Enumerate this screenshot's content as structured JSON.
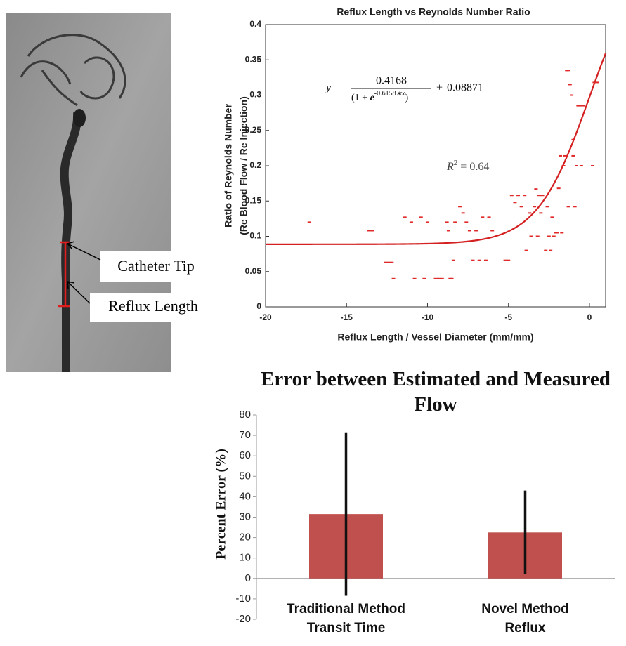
{
  "image_panel": {
    "labels": [
      "Catheter Tip",
      "Reflux Length"
    ]
  },
  "chart_data": [
    {
      "type": "scatter",
      "title": "Reflux Length vs Reynolds Number Ratio",
      "xlabel": "Reflux Length / Vessel Diameter (mm/mm)",
      "ylabel": [
        "Ratio of Reynolds Number",
        "(Re Blood Flow / Re Injection)"
      ],
      "color": "#e02a2a",
      "x": [
        -17.3,
        -13.6,
        -13.4,
        -12.6,
        -12.4,
        -12.2,
        -12.1,
        -11.4,
        -11,
        -10.8,
        -10.4,
        -10.2,
        -10,
        -9.5,
        -9.3,
        -9.1,
        -8.8,
        -8.7,
        -8.6,
        -8.5,
        -8.4,
        -8.3,
        -8,
        -7.8,
        -7.6,
        -7.4,
        -7.2,
        -7,
        -6.8,
        -6.6,
        -6.4,
        -6.2,
        -6,
        -5.2,
        -5,
        -4.8,
        -4.6,
        -4.4,
        -4.2,
        -4,
        -3.9,
        -3.7,
        -3.6,
        -3.4,
        -3.3,
        -3.2,
        -3.1,
        -3,
        -2.9,
        -2.7,
        -2.6,
        -2.5,
        -2.4,
        -2.3,
        -2.2,
        -2.1,
        -2,
        -1.9,
        -1.8,
        -1.7,
        -1.6,
        -1.5,
        -1.4,
        -1.3,
        -1.2,
        -1.1,
        -1,
        -0.9,
        -0.8,
        -0.7,
        -0.6,
        -0.5,
        -0.4,
        0.2,
        0.3,
        0.5,
        -1.3,
        -1
      ],
      "values": [
        0.12,
        0.108,
        0.108,
        0.063,
        0.063,
        0.063,
        0.04,
        0.127,
        0.12,
        0.04,
        0.127,
        0.04,
        0.12,
        0.04,
        0.04,
        0.04,
        0.12,
        0.108,
        0.04,
        0.04,
        0.066,
        0.12,
        0.142,
        0.133,
        0.12,
        0.108,
        0.066,
        0.108,
        0.066,
        0.127,
        0.066,
        0.127,
        0.108,
        0.066,
        0.066,
        0.158,
        0.148,
        0.158,
        0.142,
        0.158,
        0.08,
        0.133,
        0.1,
        0.142,
        0.167,
        0.1,
        0.158,
        0.133,
        0.158,
        0.08,
        0.142,
        0.1,
        0.08,
        0.127,
        0.1,
        0.105,
        0.105,
        0.168,
        0.214,
        0.105,
        0.2,
        0.214,
        0.335,
        0.335,
        0.315,
        0.3,
        0.237,
        0.142,
        0.2,
        0.285,
        0.285,
        0.2,
        0.285,
        0.2,
        0.318,
        0.318,
        0.142,
        0.214
      ],
      "xlim": [
        -20,
        1
      ],
      "xticks": [
        -20,
        -15,
        -10,
        -5,
        0
      ],
      "ylim": [
        0,
        0.4
      ],
      "yticks": [
        0,
        0.05,
        0.1,
        0.15,
        0.2,
        0.25,
        0.3,
        0.35,
        0.4
      ],
      "fit": {
        "a": 0.4168,
        "b": -0.6158,
        "c": 0.08871,
        "color": "#d42020"
      },
      "equation": {
        "lhs": "y =",
        "den_open": "(1 + ",
        "base": "e",
        "exp_suffix": "∗x",
        "den_close": ")",
        "plus": "+"
      },
      "r2": {
        "symbol": "R",
        "power": "2",
        "eq": "=",
        "value": 0.64
      }
    },
    {
      "type": "bar",
      "title": "Error between Estimated and Measured Flow",
      "ylabel": "Percent Error (%)",
      "categories": [
        "Traditional Method\nTransit Time",
        "Novel Method\nReflux"
      ],
      "values": [
        31.5,
        22.5
      ],
      "errors": [
        40,
        20.5
      ],
      "color": "#c0504d",
      "ylim": [
        -20,
        80
      ],
      "yticks": [
        -20,
        -10,
        0,
        10,
        20,
        30,
        40,
        50,
        60,
        70,
        80
      ]
    }
  ]
}
